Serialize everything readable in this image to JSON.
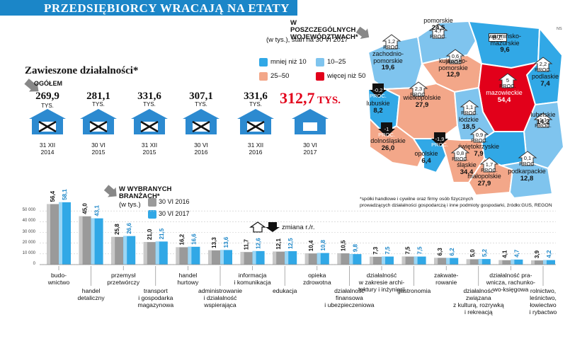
{
  "title": "Przedsiębiorcy wracają na etaty",
  "colors": {
    "banner": "#1b86c8",
    "light_blue": "#7fc4ee",
    "mid_blue": "#31a8e6",
    "salmon": "#f3a789",
    "red": "#e2001a",
    "house": "#2c8ad0"
  },
  "suspended": {
    "title": "Zawieszone działalności*",
    "overall_label": "OGÓŁEM",
    "unit": "TYS.",
    "items": [
      {
        "value": "269,9",
        "date": "31 XII\n2014"
      },
      {
        "value": "281,1",
        "date": "30 VI\n2015"
      },
      {
        "value": "331,6",
        "date": "31 XII\n2015"
      },
      {
        "value": "307,1",
        "date": "30 VI\n2016"
      },
      {
        "value": "331,6",
        "date": "31 XII\n2016"
      },
      {
        "value": "312,7",
        "date": "30 VI\n2017",
        "highlight": true,
        "unit": "TYS."
      }
    ]
  },
  "map": {
    "title": "W POSZCZEGÓLNYCH WOJEWÓDZTWACH*",
    "subtitle": "(w tys.), stan na 30 VI 2017",
    "legend": [
      {
        "label": "mniej niż 10",
        "color": "#31a8e6"
      },
      {
        "label": "10–25",
        "color": "#7fc4ee"
      },
      {
        "label": "25–50",
        "color": "#f3a789"
      },
      {
        "label": "więcej niż 50",
        "color": "#e2001a"
      }
    ],
    "regions": [
      {
        "name": "zachodnio-\npomorskie",
        "value": "19,6",
        "change": "1,2\nPROC."
      },
      {
        "name": "pomorskie",
        "value": "24,5",
        "change": "4,7\nPROC."
      },
      {
        "name": "warmińsko-\nmazurskie",
        "value": "9,6",
        "change": "B.Z."
      },
      {
        "name": "podlaskie",
        "value": "7,4",
        "change": "2,2\nPROC."
      },
      {
        "name": "kujawsko-\npomorskie",
        "value": "12,9",
        "change": "0,6\nPROC."
      },
      {
        "name": "lubuskie",
        "value": "8,2",
        "change": "-0,2\nPROC."
      },
      {
        "name": "wielkopolskie",
        "value": "27,9",
        "change": "2,3\nPROC."
      },
      {
        "name": "mazowieckie",
        "value": "54,4",
        "change": "5\nPROC."
      },
      {
        "name": "łódzkie",
        "value": "18,5",
        "change": "1,1\nPROC."
      },
      {
        "name": "lubelskie",
        "value": "14,2",
        "change": "1,1\nPROC."
      },
      {
        "name": "dolnośląskie",
        "value": "26,0",
        "change": "-1\nPROC."
      },
      {
        "name": "opolskie",
        "value": "6,4",
        "change": "-1,9\nPROC."
      },
      {
        "name": "świętokrzyskie",
        "value": "7,9",
        "change": "0,9\nPROC."
      },
      {
        "name": "śląskie",
        "value": "34,4",
        "change": "0,8\nPROC."
      },
      {
        "name": "małopolskie",
        "value": "27,9",
        "change": "1,7\nPROC."
      },
      {
        "name": "podkarpackie",
        "value": "12,8",
        "change": "0,1\nPROC."
      }
    ]
  },
  "footnote": "*spółki handlowe i cywilne oraz firmy osób fizycznych\nprowadzących działalności gospodarczą i inne podmioty gospodarki, źródło:GUS, REGON",
  "credit": "NS",
  "chart_data": {
    "type": "bar",
    "title": "W WYBRANYCH BRANŻACH*",
    "subtitle": "(w tys.)",
    "change_label": "zmiana r./r.",
    "categories": [
      "budo-\nwnictwo",
      "handel\ndetaliczny",
      "przemysł\nprzetwórczy",
      "transport\ni gospodarka\nmagazynowa",
      "handel\nhurtowy",
      "administrowanie\ni działalność\nwspierająca",
      "informacja\ni komunikacja",
      "edukacja",
      "opieka\nzdrowotna",
      "działalność\nfinansowa\ni ubezpieczeniowa",
      "działalność\nw zakresie archi-\ntektury i inżynierii",
      "gastronomia",
      "zakwate-\nrowanie",
      "działalność\nzwiązana\nz kulturą, rozrywką\ni rekreacją",
      "działalność pra-\nwnicza, rachunko-\nwo-księgowa",
      "rolnictwo,\nleśnictwo,\nłowiectwo\ni rybactwo"
    ],
    "series": [
      {
        "name": "30 VI 2016",
        "values": [
          56.4,
          45.0,
          25.8,
          21.0,
          16.2,
          13.3,
          11.7,
          12.1,
          10.4,
          10.5,
          7.3,
          7.5,
          6.3,
          5.0,
          4.1,
          3.9
        ],
        "labels": [
          "56,4",
          "45,0",
          "25,8",
          "21,0",
          "16,2",
          "13,3",
          "11,7",
          "12,1",
          "10,4",
          "10,5",
          "7,3",
          "7,5",
          "6,3",
          "5,0",
          "4,1",
          "3,9"
        ],
        "color": "#9a9a9a"
      },
      {
        "name": "30 VI 2017",
        "values": [
          58.1,
          43.1,
          26.6,
          21.5,
          16.6,
          13.6,
          12.6,
          12.5,
          10.8,
          9.8,
          7.5,
          7.5,
          6.2,
          5.2,
          4.7,
          4.2
        ],
        "labels": [
          "58,1",
          "43,1",
          "26,6",
          "21,5",
          "16,6",
          "13,6",
          "12,6",
          "12,5",
          "10,8",
          "9,8",
          "7,5",
          "7,5",
          "6,2",
          "5,2",
          "4,7",
          "4,2"
        ],
        "color": "#31a8e6"
      }
    ],
    "change_direction": [
      "up",
      "down",
      "up",
      "up",
      "up",
      "up",
      "up",
      "up",
      "up",
      "down",
      "up",
      "equal",
      "down",
      "up",
      "up",
      "up"
    ],
    "yticks": [
      "50 000",
      "40 000",
      "30 000",
      "20 000",
      "10 000",
      "0"
    ],
    "ylim": [
      0,
      60000
    ]
  }
}
